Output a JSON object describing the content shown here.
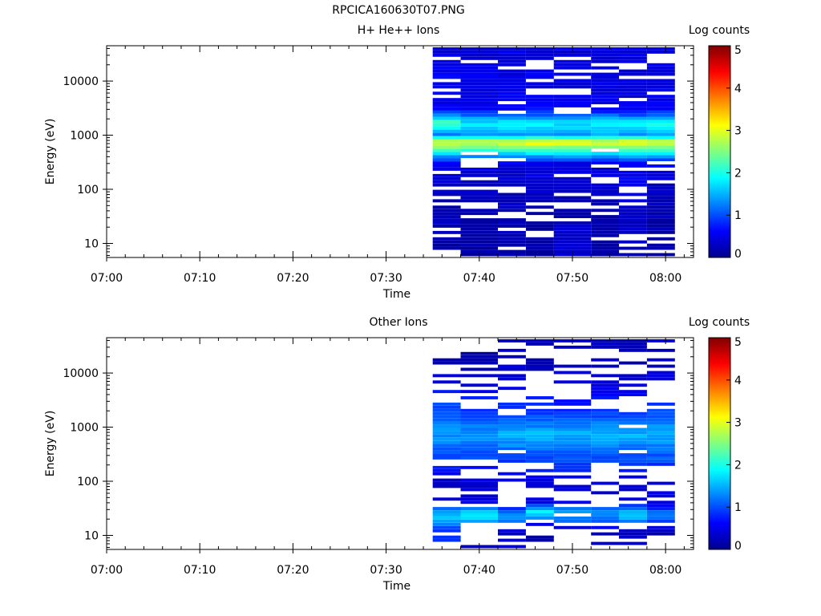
{
  "page": {
    "title": "RPCICA160630T07.PNG"
  },
  "panels": [
    {
      "title": "H+ He++ Ions",
      "ylabel": "Energy (eV)",
      "xlabel": "Time",
      "colorbar_label": "Log counts"
    },
    {
      "title": "Other Ions",
      "ylabel": "Energy (eV)",
      "xlabel": "Time",
      "colorbar_label": "Log counts"
    }
  ],
  "colors": {
    "colormap": [
      "#00008f",
      "#0000ff",
      "#0080ff",
      "#00ffff",
      "#80ff80",
      "#ffff00",
      "#ff8000",
      "#ff0000",
      "#800000"
    ]
  },
  "chart_data": [
    {
      "type": "heatmap",
      "title": "H+ He++ Ions",
      "xlabel": "Time",
      "ylabel": "Energy (eV)",
      "x_ticks": [
        "07:00",
        "07:10",
        "07:20",
        "07:30",
        "07:40",
        "07:50",
        "08:00"
      ],
      "xlim": [
        "07:00",
        "08:03"
      ],
      "y_scale": "log",
      "ylim": [
        5.5,
        45000
      ],
      "y_ticks": [
        10,
        100,
        1000,
        10000
      ],
      "colorbar": {
        "label": "Log counts",
        "range": [
          0,
          5
        ],
        "ticks": [
          0,
          1,
          2,
          3,
          4,
          5
        ]
      },
      "time_bins": [
        "07:35",
        "07:38",
        "07:42",
        "07:45",
        "07:48",
        "07:52",
        "07:55",
        "07:58",
        "08:01"
      ],
      "energy_range_eV": [
        5.8,
        42000
      ],
      "profile": [
        {
          "energy": 10,
          "counts": [
            0.1,
            0.1,
            0.15,
            0.15,
            0.4,
            0.1,
            0.2,
            0.1
          ]
        },
        {
          "energy": 30,
          "counts": [
            0.2,
            0.15,
            0.3,
            0.0,
            0.2,
            0.15,
            0.3,
            0.2
          ]
        },
        {
          "energy": 100,
          "counts": [
            0.3,
            0.35,
            0.25,
            0.4,
            0.3,
            0.35,
            0.6,
            0.3
          ]
        },
        {
          "energy": 300,
          "counts": [
            0.5,
            0.55,
            0.5,
            0.55,
            0.5,
            0.5,
            0.55,
            0.6
          ]
        },
        {
          "energy": 750,
          "counts": [
            3.1,
            3.0,
            3.1,
            3.2,
            3.1,
            3.0,
            3.1,
            3.1
          ]
        },
        {
          "energy": 1000,
          "counts": [
            1.2,
            1.4,
            1.3,
            1.4,
            1.3,
            1.4,
            1.3,
            1.4
          ]
        },
        {
          "energy": 1650,
          "counts": [
            2.3,
            1.8,
            1.9,
            1.8,
            1.8,
            1.9,
            1.8,
            2.0
          ]
        },
        {
          "energy": 3000,
          "counts": [
            0.5,
            0.55,
            0.55,
            0.6,
            0.5,
            0.55,
            0.5,
            0.6
          ]
        },
        {
          "energy": 10000,
          "counts": [
            0.6,
            0.5,
            0.5,
            0.55,
            0.5,
            0.5,
            0.5,
            0.55
          ]
        },
        {
          "energy": 35000,
          "counts": [
            0.5,
            0.45,
            0.5,
            0.45,
            0.45,
            0.5,
            0.5,
            0.5
          ]
        }
      ]
    },
    {
      "type": "heatmap",
      "title": "Other Ions",
      "xlabel": "Time",
      "ylabel": "Energy (eV)",
      "x_ticks": [
        "07:00",
        "07:10",
        "07:20",
        "07:30",
        "07:40",
        "07:50",
        "08:00"
      ],
      "xlim": [
        "07:00",
        "08:03"
      ],
      "y_scale": "log",
      "ylim": [
        5.5,
        45000
      ],
      "y_ticks": [
        10,
        100,
        1000,
        10000
      ],
      "colorbar": {
        "label": "Log counts",
        "range": [
          0,
          5
        ],
        "ticks": [
          0,
          1,
          2,
          3,
          4,
          5
        ]
      },
      "time_bins": [
        "07:35",
        "07:38",
        "07:42",
        "07:45",
        "07:48",
        "07:52",
        "07:55",
        "07:58",
        "08:01"
      ],
      "energy_range_eV": [
        5.8,
        42000
      ],
      "profile": [
        {
          "energy": 10,
          "counts": [
            0.8,
            0.1,
            0.3,
            0.2,
            0.0,
            0.2,
            0.3,
            0.1
          ]
        },
        {
          "energy": 15,
          "counts": [
            1.1,
            0.6,
            0.7,
            0.5,
            0.5,
            0.6,
            0.4,
            0.5
          ]
        },
        {
          "energy": 20,
          "counts": [
            1.7,
            1.7,
            1.4,
            1.2,
            1.3,
            1.2,
            1.5,
            1.3
          ]
        },
        {
          "energy": 28,
          "counts": [
            1.4,
            1.6,
            1.1,
            1.9,
            1.4,
            1.2,
            1.6,
            1.0
          ]
        },
        {
          "energy": 40,
          "counts": [
            0.5,
            0.5,
            0.5,
            0.5,
            0.5,
            0.5,
            0.5,
            0.5
          ]
        },
        {
          "energy": 80,
          "counts": [
            0.3,
            0.4,
            0.4,
            0.35,
            0.4,
            0.4,
            0.4,
            0.45
          ]
        },
        {
          "energy": 750,
          "counts": [
            1.4,
            1.4,
            1.5,
            1.5,
            1.5,
            1.5,
            1.5,
            1.5
          ]
        },
        {
          "energy": 1700,
          "counts": [
            1.1,
            1.0,
            0.9,
            0.9,
            0.9,
            0.9,
            0.9,
            1.0
          ]
        },
        {
          "energy": 15000,
          "counts": [
            0.2,
            0.2,
            0.3,
            0.2,
            0.3,
            0.3,
            0.2,
            0.3
          ]
        }
      ]
    }
  ]
}
